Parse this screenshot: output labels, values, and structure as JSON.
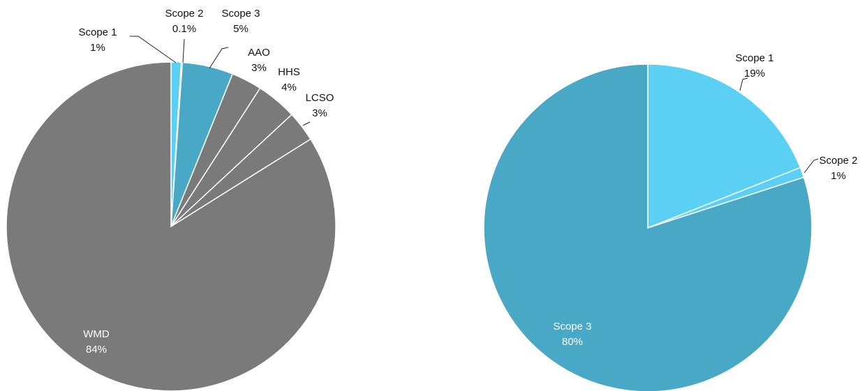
{
  "chart_data": [
    {
      "type": "pie",
      "start_angle_deg": 0,
      "direction": "clockwise",
      "slices": [
        {
          "name": "Scope 1",
          "value": 1,
          "label": "1%",
          "color": "#5bd0f4"
        },
        {
          "name": "Scope 2",
          "value": 0.1,
          "label": "0.1%",
          "color": "#5bd0f4"
        },
        {
          "name": "Scope 3",
          "value": 5,
          "label": "5%",
          "color": "#4aa8c7"
        },
        {
          "name": "AAO",
          "value": 3,
          "label": "3%",
          "color": "#7a7a7a"
        },
        {
          "name": "HHS",
          "value": 4,
          "label": "4%",
          "color": "#7a7a7a"
        },
        {
          "name": "LCSO",
          "value": 3,
          "label": "3%",
          "color": "#7a7a7a"
        },
        {
          "name": "WMD",
          "value": 84,
          "label": "84%",
          "color": "#7a7a7a"
        }
      ]
    },
    {
      "type": "pie",
      "start_angle_deg": 0,
      "direction": "clockwise",
      "slices": [
        {
          "name": "Scope 1",
          "value": 19,
          "label": "19%",
          "color": "#5bd0f4"
        },
        {
          "name": "Scope 2",
          "value": 1,
          "label": "1%",
          "color": "#5bd0f4"
        },
        {
          "name": "Scope 3",
          "value": 80,
          "label": "80%",
          "color": "#4aa8c7"
        }
      ]
    }
  ]
}
